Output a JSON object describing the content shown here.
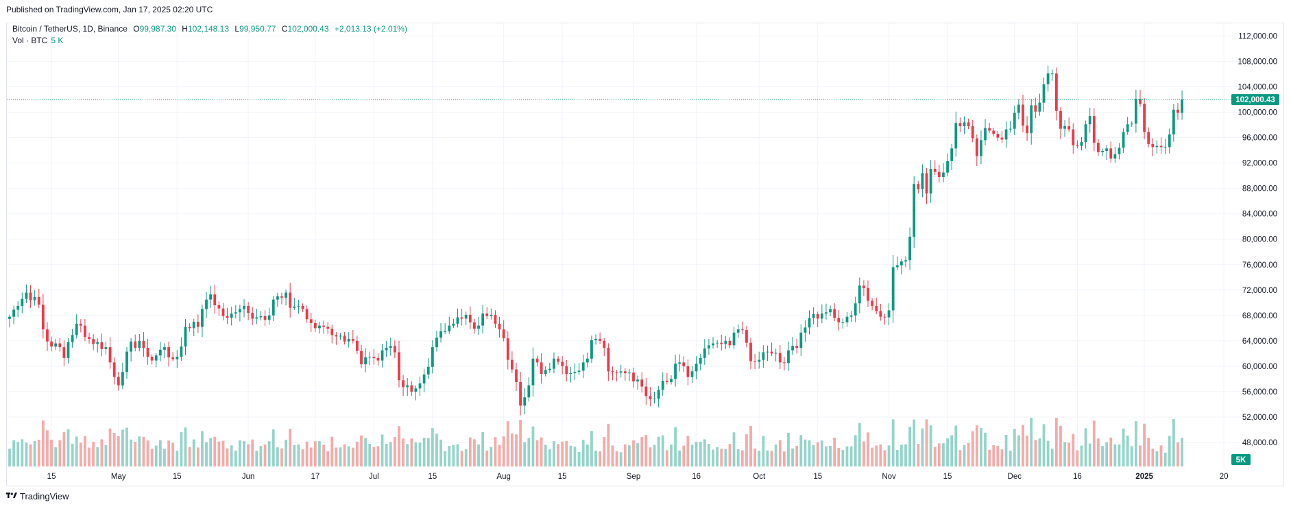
{
  "header": {
    "published": "Published on TradingView.com, Jan 17, 2025 02:20 UTC"
  },
  "legend": {
    "symbol": "Bitcoin / TetherUS, 1D, Binance",
    "open_key": "O",
    "open": "99,987.30",
    "high_key": "H",
    "high": "102,148.13",
    "low_key": "L",
    "low": "99,950.77",
    "close_key": "C",
    "close": "102,000.43",
    "change": "+2,013.13 (+2.01%)",
    "vol_label": "Vol · BTC",
    "vol_value": "5 K"
  },
  "footer": {
    "brand": "TradingView",
    "logo_icon": "tradingview-logo-icon"
  },
  "colors": {
    "up": "#089981",
    "down": "#f23645",
    "vol_up": "#93d4c9",
    "vol_down": "#f7a9a7",
    "grid": "#f0f3fa",
    "price_line": "#089981"
  },
  "chart_data": {
    "type": "candlestick",
    "symbol": "Bitcoin / TetherUS",
    "interval": "1D",
    "exchange": "Binance",
    "y_axis": {
      "range": [
        44000,
        114000
      ],
      "ticks": [
        48000,
        52000,
        56000,
        60000,
        64000,
        68000,
        72000,
        76000,
        80000,
        84000,
        88000,
        92000,
        96000,
        100000,
        104000,
        108000,
        112000
      ],
      "tick_labels": [
        "48,000.00",
        "52,000.00",
        "56,000.00",
        "60,000.00",
        "64,000.00",
        "68,000.00",
        "72,000.00",
        "76,000.00",
        "80,000.00",
        "84,000.00",
        "88,000.00",
        "92,000.00",
        "96,000.00",
        "100,000.00",
        "104,000.00",
        "108,000.00",
        "112,000.00"
      ]
    },
    "x_axis": {
      "first_date": "2024-04-05",
      "last_date": "2025-01-17",
      "axis_end_date": "2025-01-28",
      "ticks": [
        {
          "date": "2024-04-15",
          "label": "15"
        },
        {
          "date": "2024-05-01",
          "label": "May"
        },
        {
          "date": "2024-05-15",
          "label": "15"
        },
        {
          "date": "2024-06-01",
          "label": "Jun"
        },
        {
          "date": "2024-06-17",
          "label": "17"
        },
        {
          "date": "2024-07-01",
          "label": "Jul"
        },
        {
          "date": "2024-07-15",
          "label": "15"
        },
        {
          "date": "2024-08-01",
          "label": "Aug"
        },
        {
          "date": "2024-08-15",
          "label": "15"
        },
        {
          "date": "2024-09-01",
          "label": "Sep"
        },
        {
          "date": "2024-09-16",
          "label": "16"
        },
        {
          "date": "2024-10-01",
          "label": "Oct"
        },
        {
          "date": "2024-10-15",
          "label": "15"
        },
        {
          "date": "2024-11-01",
          "label": "Nov"
        },
        {
          "date": "2024-11-15",
          "label": "15"
        },
        {
          "date": "2024-12-01",
          "label": "Dec"
        },
        {
          "date": "2024-12-16",
          "label": "16"
        },
        {
          "date": "2025-01-01",
          "label": "2025",
          "bold": true
        },
        {
          "date": "2025-01-20",
          "label": "20"
        }
      ]
    },
    "last_price": 102000.43,
    "last_price_label": "102,000.43",
    "volume_label": "5K",
    "closes": [
      67800,
      68900,
      69500,
      70600,
      71600,
      70400,
      70900,
      69700,
      65800,
      63900,
      63100,
      63600,
      63000,
      61300,
      63800,
      64900,
      66700,
      66400,
      64600,
      64300,
      63500,
      63800,
      62700,
      63000,
      60600,
      58300,
      57000,
      59100,
      62300,
      63900,
      62900,
      64000,
      62900,
      61500,
      60900,
      61700,
      62600,
      63000,
      61400,
      61100,
      61500,
      63100,
      66200,
      66000,
      67000,
      66200,
      69000,
      70500,
      71300,
      69600,
      69100,
      67900,
      67600,
      68300,
      68500,
      69000,
      69500,
      68400,
      67500,
      67700,
      67900,
      67300,
      68000,
      70500,
      71000,
      70800,
      71600,
      69200,
      69400,
      69500,
      69000,
      67400,
      66800,
      66000,
      66400,
      66200,
      65900,
      64900,
      64700,
      64800,
      63900,
      64300,
      64000,
      62400,
      60300,
      61400,
      61500,
      61300,
      60900,
      62500,
      62900,
      63200,
      62200,
      57800,
      56700,
      57000,
      56000,
      56500,
      57300,
      58700,
      59900,
      63000,
      64500,
      65500,
      65500,
      66400,
      66700,
      67700,
      67500,
      68100,
      66900,
      65900,
      66400,
      68300,
      67900,
      68100,
      66700,
      65800,
      64400,
      61000,
      59500,
      57500,
      53800,
      55100,
      57000,
      61200,
      60600,
      58800,
      59400,
      59600,
      61200,
      60700,
      60000,
      58800,
      58900,
      59100,
      59300,
      60600,
      61200,
      64100,
      64300,
      64000,
      62900,
      59200,
      59100,
      59000,
      59200,
      58900,
      59000,
      57600,
      57900,
      56800,
      55300,
      54800,
      54900,
      56300,
      57700,
      57500,
      58000,
      60400,
      60600,
      60000,
      58300,
      59200,
      60400,
      61300,
      62800,
      63300,
      63600,
      63700,
      63500,
      64000,
      63300,
      65300,
      65800,
      65700,
      63700,
      60800,
      60700,
      61000,
      62200,
      62300,
      62000,
      62100,
      60600,
      60500,
      62500,
      63200,
      62900,
      65300,
      66100,
      67600,
      68200,
      67500,
      68300,
      68500,
      69000,
      67600,
      66900,
      66900,
      67800,
      68000,
      69900,
      72700,
      72300,
      70300,
      69500,
      68700,
      67800,
      67700,
      68800,
      75600,
      75900,
      76500,
      76700,
      80400,
      88700,
      87900,
      90400,
      87200,
      91100,
      90600,
      89800,
      90500,
      92300,
      94300,
      98300,
      97800,
      98400,
      97800,
      95900,
      93100,
      95600,
      97500,
      97100,
      96600,
      96000,
      95700,
      97300,
      97400,
      99900,
      101200,
      97900,
      96700,
      101100,
      100100,
      101500,
      104400,
      106100,
      106100,
      100200,
      97400,
      97800,
      97300,
      94800,
      94700,
      95300,
      98100,
      99400,
      95200,
      93700,
      93900,
      94300,
      92700,
      93400,
      94400,
      96900,
      98100,
      98200,
      102100,
      101300,
      96900,
      95000,
      94500,
      94700,
      94500,
      94500,
      96500,
      100400,
      99900,
      102000
    ]
  }
}
